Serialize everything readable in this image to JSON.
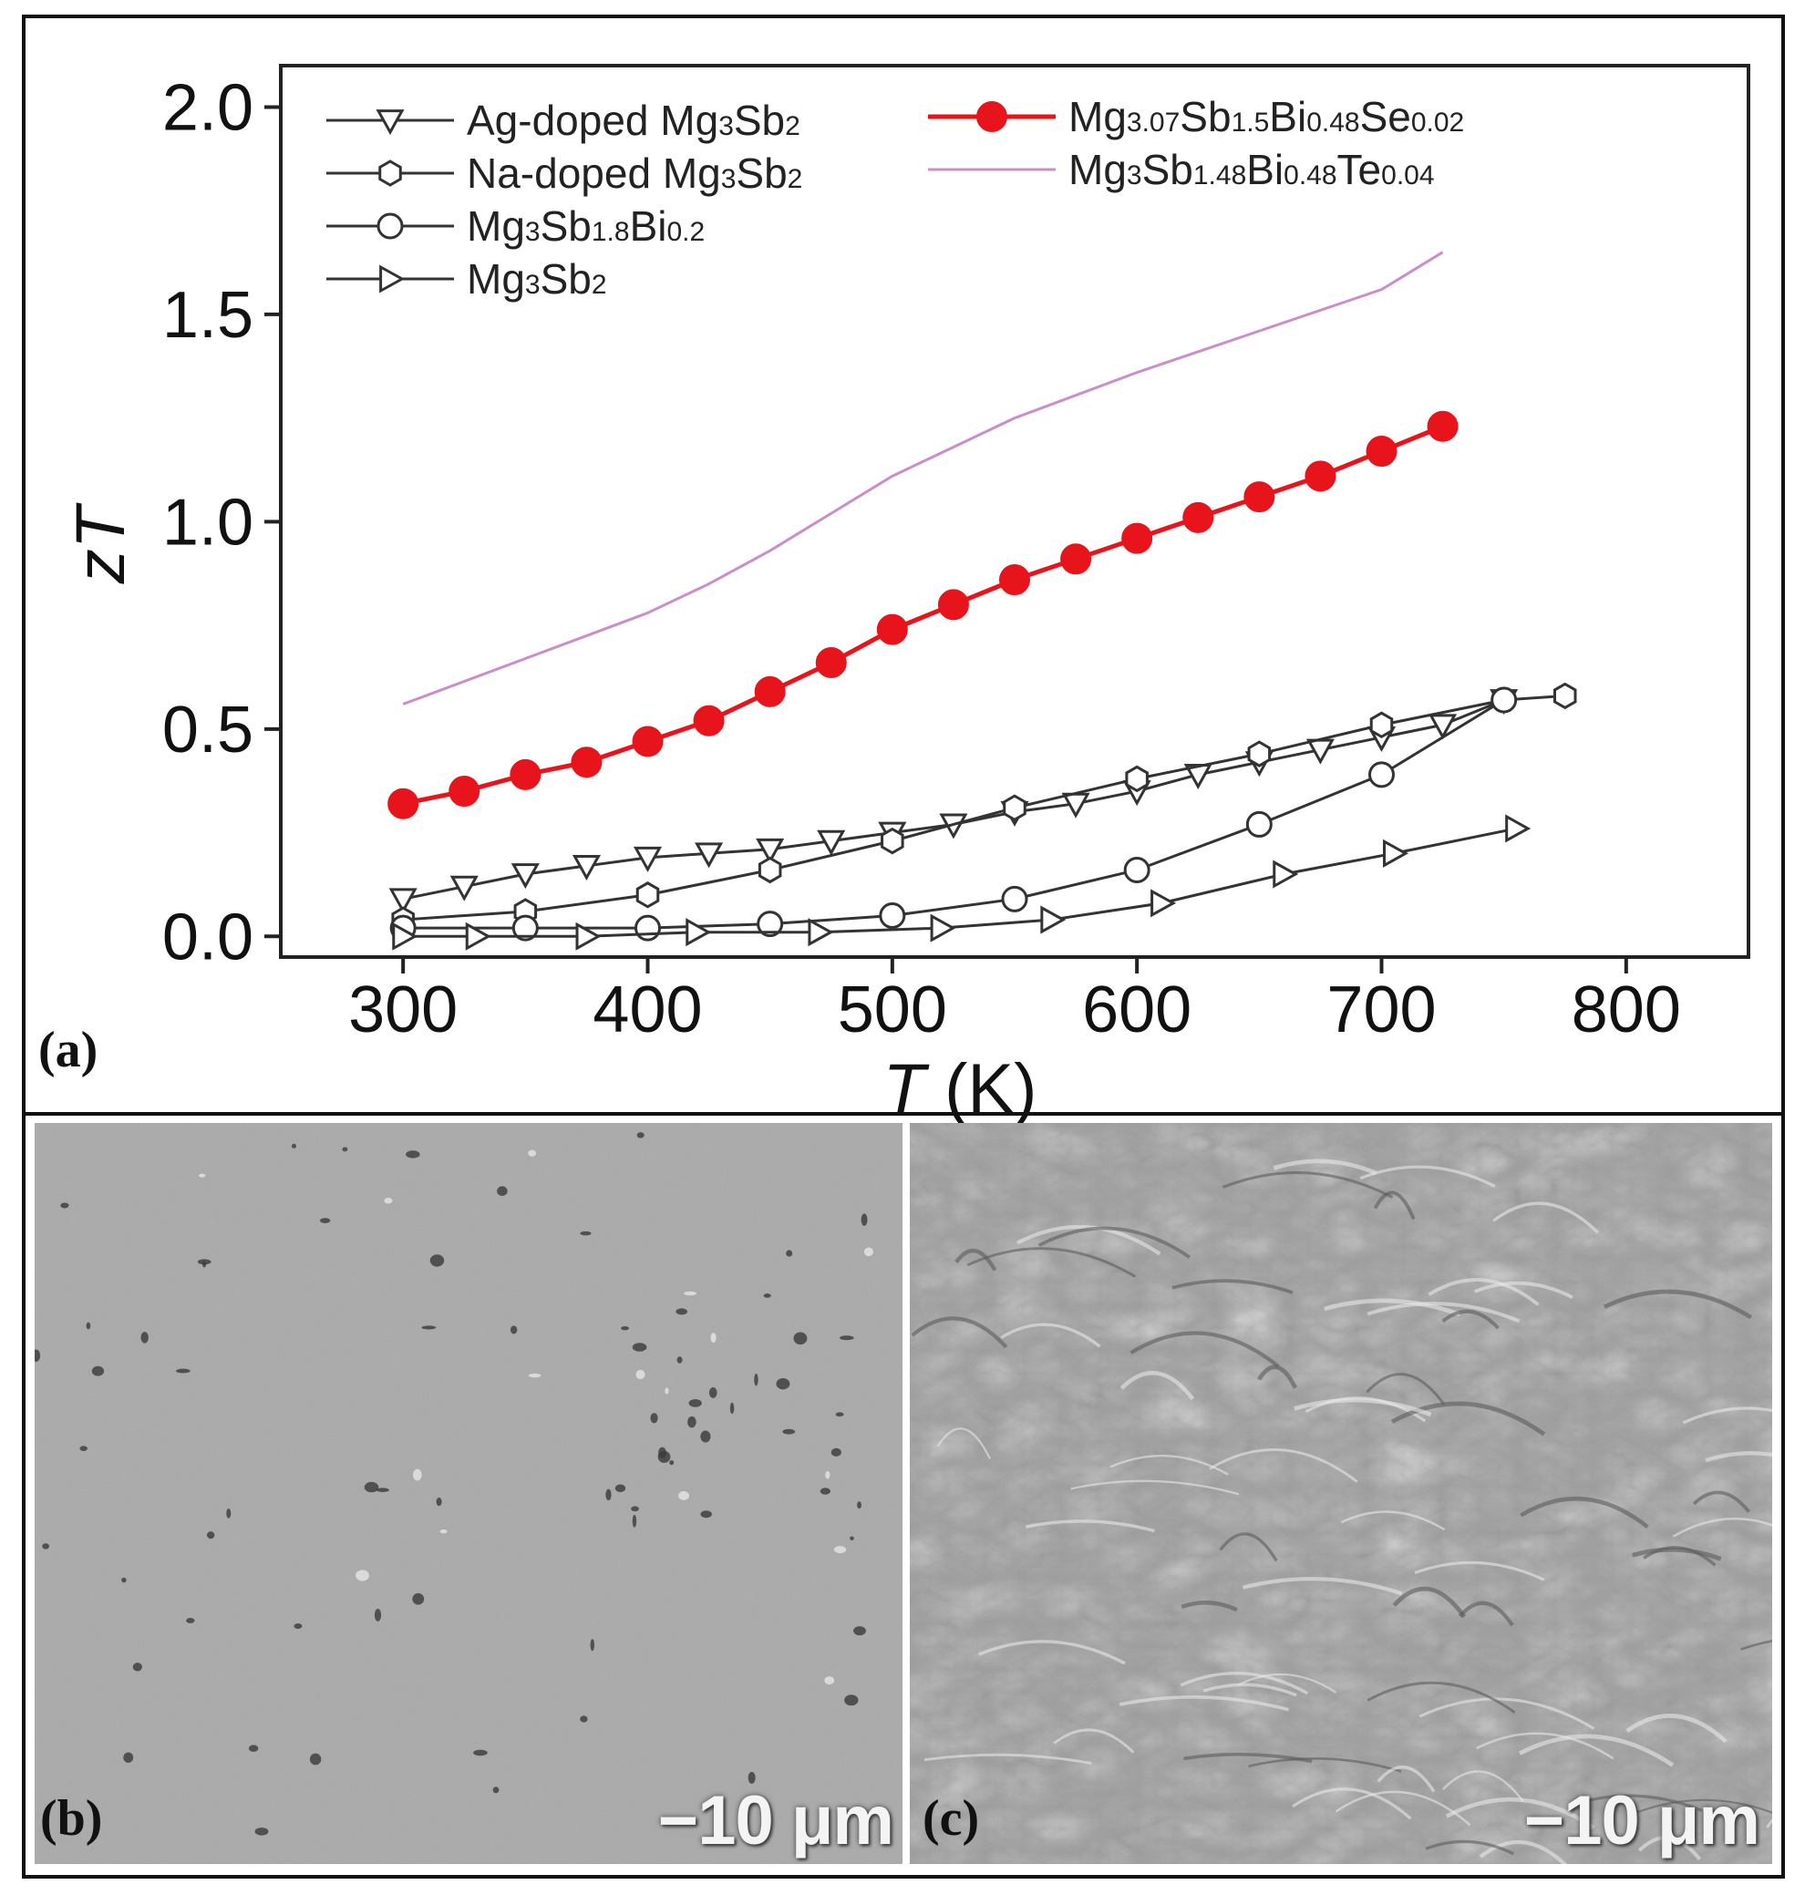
{
  "chart_data": {
    "type": "line",
    "xlabel_italic": "T",
    "xlabel_unit": "(K)",
    "ylabel": "zT",
    "xlim": [
      250,
      850
    ],
    "ylim": [
      -0.05,
      2.1
    ],
    "xticks": [
      300,
      400,
      500,
      600,
      700,
      800
    ],
    "yticks": [
      0.0,
      0.5,
      1.0,
      1.5,
      2.0
    ],
    "ytick_labels": [
      "0.0",
      "0.5",
      "1.0",
      "1.5",
      "2.0"
    ],
    "legend_position": "top-left",
    "series": [
      {
        "name": "Ag-doped Mg3Sb2",
        "legend": [
          {
            "t": "Ag-doped Mg"
          },
          {
            "t": "3",
            "sub": true
          },
          {
            "t": "Sb"
          },
          {
            "t": "2",
            "sub": true
          }
        ],
        "marker": "triangle-down",
        "color": "#333333",
        "x": [
          300,
          325,
          350,
          375,
          400,
          425,
          450,
          475,
          500,
          525,
          550,
          575,
          600,
          625,
          650,
          675,
          700,
          725,
          750
        ],
        "y": [
          0.09,
          0.12,
          0.15,
          0.17,
          0.19,
          0.2,
          0.21,
          0.23,
          0.25,
          0.27,
          0.3,
          0.32,
          0.35,
          0.39,
          0.42,
          0.45,
          0.48,
          0.51,
          0.57
        ]
      },
      {
        "name": "Na-doped Mg3Sb2",
        "legend": [
          {
            "t": "Na-doped Mg"
          },
          {
            "t": "3",
            "sub": true
          },
          {
            "t": "Sb"
          },
          {
            "t": "2",
            "sub": true
          }
        ],
        "marker": "hexagon",
        "color": "#333333",
        "x": [
          300,
          350,
          400,
          450,
          500,
          550,
          600,
          650,
          700,
          750,
          775
        ],
        "y": [
          0.04,
          0.06,
          0.1,
          0.16,
          0.23,
          0.31,
          0.38,
          0.44,
          0.51,
          0.57,
          0.58
        ]
      },
      {
        "name": "Mg3Sb1.8Bi0.2",
        "legend": [
          {
            "t": "Mg"
          },
          {
            "t": "3",
            "sub": true
          },
          {
            "t": "Sb"
          },
          {
            "t": "1.8",
            "sub": true
          },
          {
            "t": "Bi"
          },
          {
            "t": "0.2",
            "sub": true
          }
        ],
        "marker": "circle",
        "color": "#333333",
        "x": [
          300,
          350,
          400,
          450,
          500,
          550,
          600,
          650,
          700,
          750
        ],
        "y": [
          0.02,
          0.02,
          0.02,
          0.03,
          0.05,
          0.09,
          0.16,
          0.27,
          0.39,
          0.57
        ]
      },
      {
        "name": "Mg3Sb2",
        "legend": [
          {
            "t": "Mg"
          },
          {
            "t": "3",
            "sub": true
          },
          {
            "t": "Sb"
          },
          {
            "t": "2",
            "sub": true
          }
        ],
        "marker": "triangle-right",
        "color": "#333333",
        "x": [
          300,
          330,
          375,
          420,
          470,
          520,
          565,
          610,
          660,
          705,
          755
        ],
        "y": [
          0.0,
          0.0,
          0.0,
          0.01,
          0.01,
          0.02,
          0.04,
          0.08,
          0.15,
          0.2,
          0.26
        ]
      },
      {
        "name": "Mg3.07Sb1.5Bi0.48Se0.02",
        "legend": [
          {
            "t": "Mg"
          },
          {
            "t": "3.07",
            "sub": true
          },
          {
            "t": "Sb"
          },
          {
            "t": "1.5",
            "sub": true
          },
          {
            "t": "Bi"
          },
          {
            "t": "0.48",
            "sub": true
          },
          {
            "t": "Se"
          },
          {
            "t": "0.02",
            "sub": true
          }
        ],
        "marker": "filled-circle",
        "color": "#e8141b",
        "x": [
          300,
          325,
          350,
          375,
          400,
          425,
          450,
          475,
          500,
          525,
          550,
          575,
          600,
          625,
          650,
          675,
          700,
          725
        ],
        "y": [
          0.32,
          0.35,
          0.39,
          0.42,
          0.47,
          0.52,
          0.59,
          0.66,
          0.74,
          0.8,
          0.86,
          0.91,
          0.96,
          1.01,
          1.06,
          1.11,
          1.17,
          1.23
        ]
      },
      {
        "name": "Mg3Sb1.48Bi0.48Te0.04",
        "legend": [
          {
            "t": "Mg"
          },
          {
            "t": "3",
            "sub": true
          },
          {
            "t": "Sb"
          },
          {
            "t": "1.48",
            "sub": true
          },
          {
            "t": "Bi"
          },
          {
            "t": "0.48",
            "sub": true
          },
          {
            "t": "Te"
          },
          {
            "t": "0.04",
            "sub": true
          }
        ],
        "marker": "none",
        "color": "#c98fc9",
        "x": [
          300,
          350,
          400,
          425,
          450,
          475,
          500,
          525,
          550,
          600,
          650,
          700,
          725
        ],
        "y": [
          0.56,
          0.67,
          0.78,
          0.85,
          0.93,
          1.02,
          1.11,
          1.18,
          1.25,
          1.36,
          1.46,
          1.56,
          1.65
        ]
      }
    ]
  },
  "panels": {
    "a": "(a)",
    "b": "(b)",
    "c": "(c)"
  },
  "scalebars": {
    "b": "−10 μm",
    "c": "−10 μm"
  }
}
